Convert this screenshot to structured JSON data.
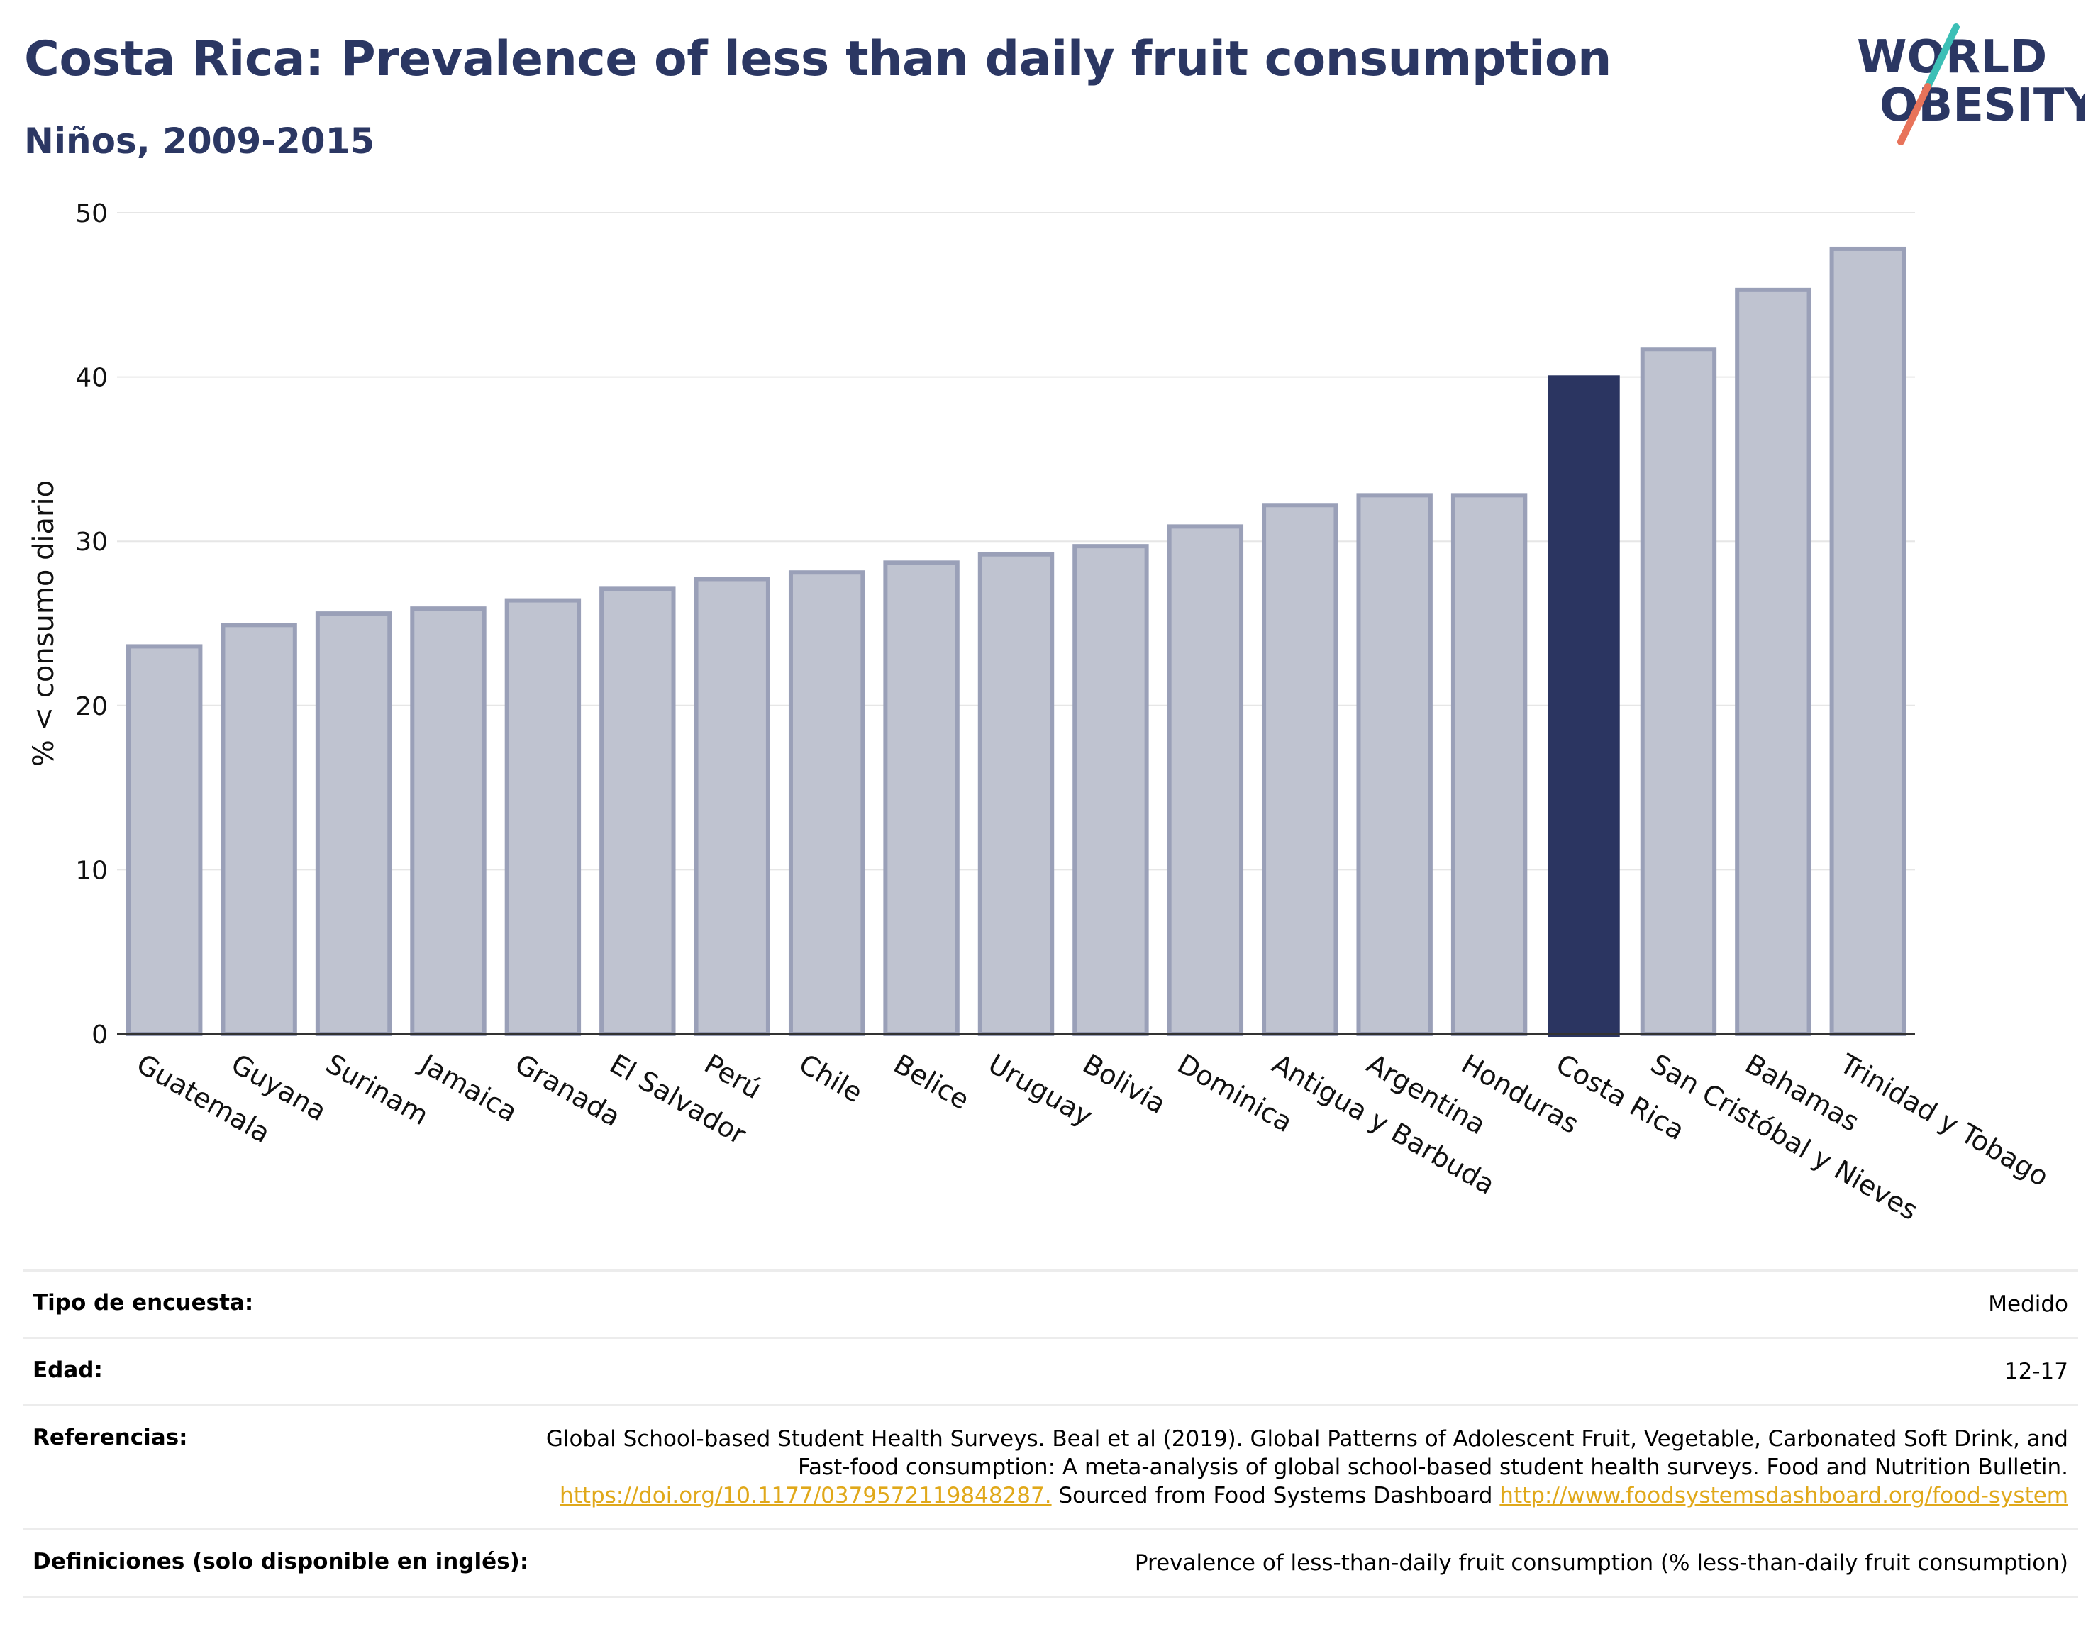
{
  "header": {
    "title": "Costa Rica: Prevalence of less than daily fruit consumption",
    "subtitle": "Niños, 2009-2015"
  },
  "logo": {
    "line1": "WORLD",
    "line2": "OBESITY",
    "colors": {
      "text": "#2b3763",
      "slash_top": "#3cbfb6",
      "slash_bottom": "#e8735a"
    }
  },
  "chart_data": {
    "type": "bar",
    "ylabel": "% < consumo diario",
    "ylim": [
      0,
      50
    ],
    "yticks": [
      0,
      10,
      20,
      30,
      40,
      50
    ],
    "grid": true,
    "categories": [
      "Guatemala",
      "Guyana",
      "Surinam",
      "Jamaica",
      "Granada",
      "El Salvador",
      "Perú",
      "Chile",
      "Belice",
      "Uruguay",
      "Bolivia",
      "Dominica",
      "Antigua y Barbuda",
      "Argentina",
      "Honduras",
      "Costa Rica",
      "San Cristóbal y Nieves",
      "Bahamas",
      "Trinidad y Tobago"
    ],
    "values": [
      23.6,
      24.9,
      25.6,
      25.9,
      26.4,
      27.1,
      27.7,
      28.1,
      28.7,
      29.2,
      29.7,
      30.9,
      32.2,
      32.8,
      32.8,
      40.1,
      41.7,
      45.3,
      47.8
    ],
    "highlight": "Costa Rica",
    "colors": {
      "bar": "#bfc3d0",
      "bar_border": "#9aa0b8",
      "highlight": "#2b3561",
      "grid": "#e6e6e6",
      "axis": "#333333"
    }
  },
  "info": {
    "rows": [
      {
        "label": "Tipo de encuesta:",
        "value": "Medido"
      },
      {
        "label": "Edad:",
        "value": "12-17"
      },
      {
        "label": "Referencias:",
        "value_text1": "Global School-based Student Health Surveys. Beal et al (2019). Global Patterns of Adolescent Fruit, Vegetable, Carbonated Soft Drink, and Fast-food consumption: A meta-analysis of global school-based student health surveys. Food and Nutrition Bulletin.",
        "link1": "https://doi.org/10.1177/0379572119848287.",
        "value_text2": "Sourced from Food Systems Dashboard",
        "link2": "http://www.foodsystemsdashboard.org/food-system"
      },
      {
        "label": "Definiciones (solo disponible en inglés):",
        "value": "Prevalence of less-than-daily fruit consumption (% less-than-daily fruit consumption)"
      }
    ]
  }
}
